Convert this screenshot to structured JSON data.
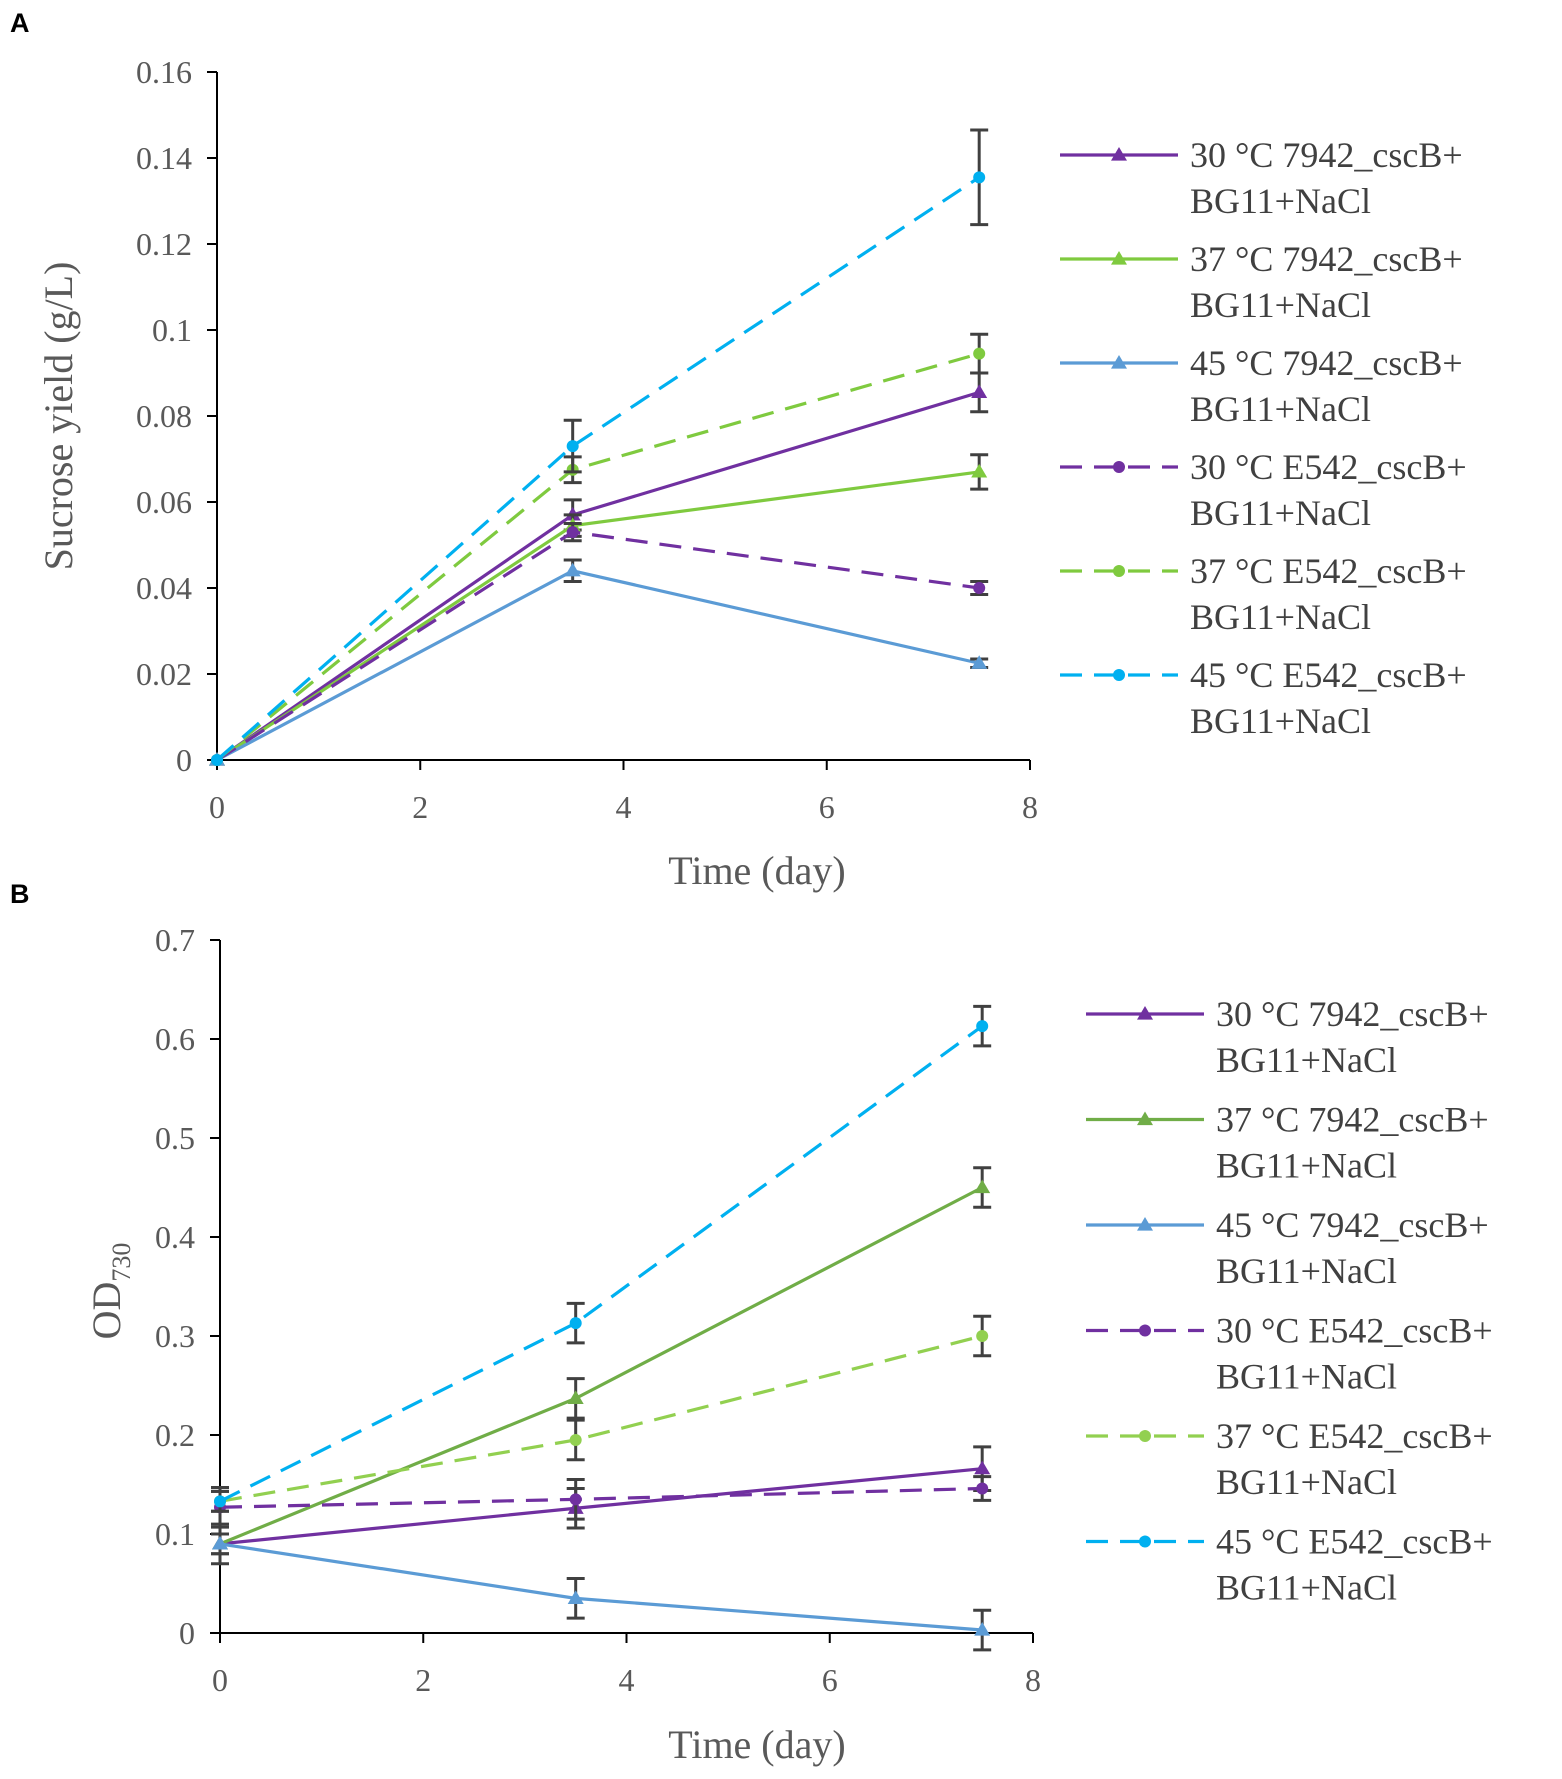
{
  "chart_data": [
    {
      "panel": "A",
      "type": "line",
      "xlabel": "Time (day)",
      "ylabel": "Sucrose yield (g/L)",
      "xlim": [
        0,
        8
      ],
      "ylim": [
        0,
        0.16
      ],
      "xticks": [
        0,
        2,
        4,
        6,
        8
      ],
      "yticks": [
        0,
        0.02,
        0.04,
        0.06,
        0.08,
        0.1,
        0.12,
        0.14,
        0.16
      ],
      "ytick_labels": [
        "0",
        "0.02",
        "0.04",
        "0.06",
        "0.08",
        "0.1",
        "0.12",
        "0.14",
        "0.16"
      ],
      "x": [
        0,
        3.5,
        7.5
      ],
      "series": [
        {
          "name": "30 °C  7942_cscB+ BG11+NaCl",
          "line1": "30 °C  7942_cscB+",
          "line2": "BG11+NaCl",
          "color": "#7030A0",
          "dashed": false,
          "marker": "triangle",
          "values": [
            0,
            0.057,
            0.0855
          ],
          "errors": [
            0,
            0.0035,
            0.0045
          ]
        },
        {
          "name": "37 °C  7942_cscB+ BG11+NaCl",
          "line1": "37 °C  7942_cscB+",
          "line2": "BG11+NaCl",
          "color": "#7FCA3F",
          "dashed": false,
          "marker": "triangle",
          "values": [
            0,
            0.0545,
            0.067
          ],
          "errors": [
            0,
            0.0025,
            0.004
          ]
        },
        {
          "name": "45 °C  7942_cscB+ BG11+NaCl",
          "line1": "45 °C  7942_cscB+",
          "line2": "BG11+NaCl",
          "color": "#5B9BD5",
          "dashed": false,
          "marker": "triangle",
          "values": [
            0,
            0.044,
            0.0225
          ],
          "errors": [
            0,
            0.0025,
            0.001
          ]
        },
        {
          "name": "30 °C  E542_cscB+ BG11+NaCl",
          "line1": "30 °C  E542_cscB+",
          "line2": "BG11+NaCl",
          "color": "#7030A0",
          "dashed": true,
          "marker": "circle",
          "values": [
            0,
            0.053,
            0.04
          ],
          "errors": [
            0,
            0.002,
            0.0015
          ]
        },
        {
          "name": "37 °C  E542_cscB+ BG11+NaCl",
          "line1": "37 °C  E542_cscB+",
          "line2": "BG11+NaCl",
          "color": "#7FCA3F",
          "dashed": true,
          "marker": "circle",
          "values": [
            0,
            0.0675,
            0.0945
          ],
          "errors": [
            0,
            0.003,
            0.0045
          ]
        },
        {
          "name": "45 °C  E542_cscB+ BG11+NaCl",
          "line1": "45 °C  E542_cscB+",
          "line2": "BG11+NaCl",
          "color": "#00B0F0",
          "dashed": true,
          "marker": "circle",
          "values": [
            0,
            0.073,
            0.1355
          ],
          "errors": [
            0,
            0.006,
            0.011
          ]
        }
      ]
    },
    {
      "panel": "B",
      "type": "line",
      "xlabel": "Time (day)",
      "ylabel": "OD",
      "ylabel_sub": "730",
      "xlim": [
        0,
        8
      ],
      "ylim": [
        0,
        0.7
      ],
      "xticks": [
        0,
        2,
        4,
        6,
        8
      ],
      "yticks": [
        0,
        0.1,
        0.2,
        0.3,
        0.4,
        0.5,
        0.6,
        0.7
      ],
      "ytick_labels": [
        "0",
        "0.1",
        "0.2",
        "0.3",
        "0.4",
        "0.5",
        "0.6",
        "0.7"
      ],
      "x": [
        0,
        3.5,
        7.5
      ],
      "series": [
        {
          "name": "30 °C  7942_cscB+ BG11+NaCl",
          "line1": "30 °C  7942_cscB+",
          "line2": "BG11+NaCl",
          "color": "#7030A0",
          "dashed": false,
          "marker": "triangle",
          "values": [
            0.09,
            0.126,
            0.166
          ],
          "errors": [
            0.01,
            0.02,
            0.022
          ]
        },
        {
          "name": "37 °C  7942_cscB+ BG11+NaCl",
          "line1": "37 °C  7942_cscB+",
          "line2": "BG11+NaCl",
          "color": "#70AD47",
          "dashed": false,
          "marker": "triangle",
          "values": [
            0.09,
            0.237,
            0.45
          ],
          "errors": [
            0.01,
            0.02,
            0.02
          ]
        },
        {
          "name": "45 °C  7942_cscB+ BG11+NaCl",
          "line1": "45 °C  7942_cscB+",
          "line2": "BG11+NaCl",
          "color": "#5B9BD5",
          "dashed": false,
          "marker": "triangle",
          "values": [
            0.09,
            0.035,
            0.003
          ],
          "errors": [
            0.02,
            0.02,
            0.02
          ]
        },
        {
          "name": "30 °C  E542_cscB+ BG11+NaCl",
          "line1": "30 °C  E542_cscB+",
          "line2": "BG11+NaCl",
          "color": "#7030A0",
          "dashed": true,
          "marker": "circle",
          "values": [
            0.127,
            0.135,
            0.146
          ],
          "errors": [
            0.02,
            0.02,
            0.012
          ]
        },
        {
          "name": "37 °C  E542_cscB+ BG11+NaCl",
          "line1": "37 °C  E542_cscB+",
          "line2": "BG11+NaCl",
          "color": "#92D050",
          "dashed": true,
          "marker": "circle",
          "values": [
            0.133,
            0.195,
            0.3
          ],
          "errors": [
            0.01,
            0.02,
            0.02
          ]
        },
        {
          "name": "45 °C  E542_cscB+ BG11+NaCl",
          "line1": "45 °C  E542_cscB+",
          "line2": "BG11+NaCl",
          "color": "#00B0F0",
          "dashed": true,
          "marker": "circle",
          "values": [
            0.133,
            0.313,
            0.613
          ],
          "errors": [
            0.01,
            0.02,
            0.02
          ]
        }
      ]
    }
  ]
}
